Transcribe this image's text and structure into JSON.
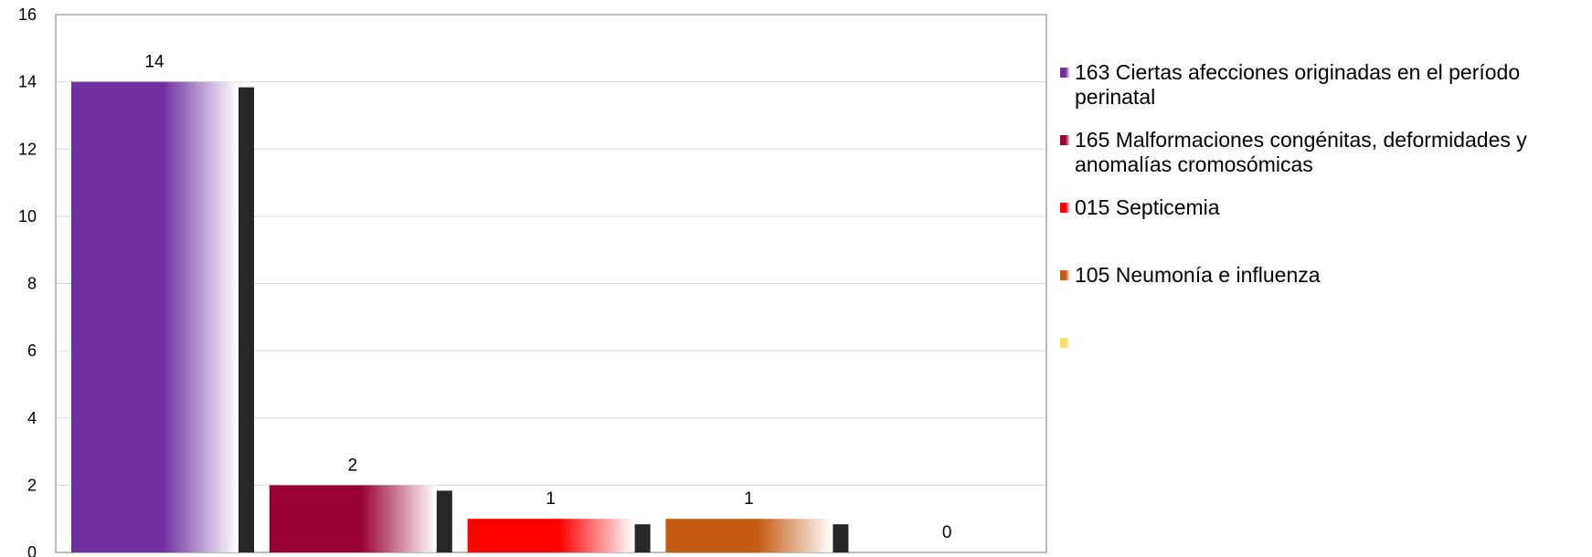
{
  "chart_data": {
    "type": "bar",
    "categories": [
      "163 Ciertas afecciones originadas en el período perinatal",
      "165 Malformaciones congénitas, deformidades y anomalías cromosómicas",
      "015 Septicemia",
      "105 Neumonía e influenza",
      ""
    ],
    "values": [
      14,
      2,
      1,
      1,
      0
    ],
    "data_labels": [
      "14",
      "2",
      "1",
      "1",
      "0"
    ],
    "colors": [
      "#7030A0",
      "#990033",
      "#FF0000",
      "#C55A11",
      "#FFD966"
    ],
    "ylim": [
      0,
      16
    ],
    "yticks": [
      0,
      2,
      4,
      6,
      8,
      10,
      12,
      14,
      16
    ],
    "ytick_labels": [
      "0",
      "2",
      "4",
      "6",
      "8",
      "10",
      "12",
      "14",
      "16"
    ],
    "grid": true,
    "legend_position": "right",
    "title": "",
    "xlabel": "",
    "ylabel": ""
  }
}
